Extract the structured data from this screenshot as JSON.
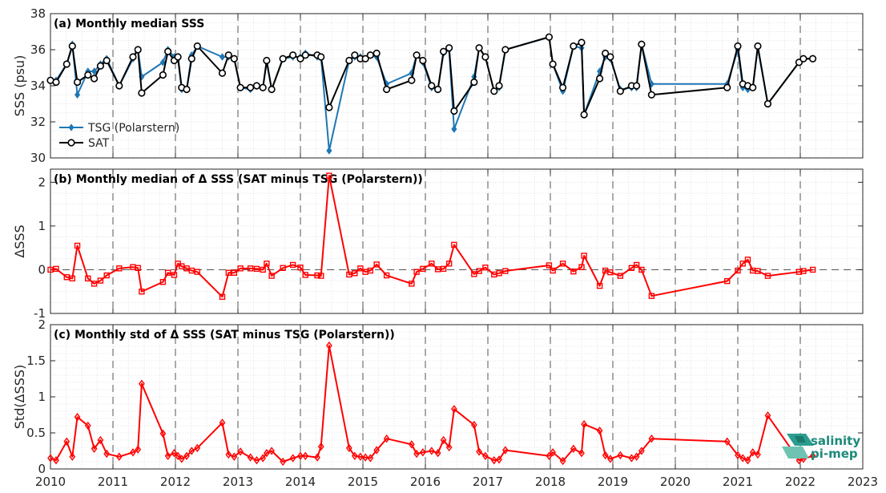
{
  "chart_data": [
    {
      "type": "line",
      "title": "(a) Monthly median SSS",
      "ylabel": "SSS (psu)",
      "xlim": [
        2010,
        2023
      ],
      "ylim": [
        30,
        38
      ],
      "yticks": [
        30,
        32,
        34,
        36,
        38
      ],
      "grid": "minor dotted, dashed vertical at years",
      "legend_placement": "lower-left",
      "series": [
        {
          "name": "TSG (Polarstern)",
          "color": "#1f77b4",
          "marker": "diamond",
          "x": [
            2010.0,
            2010.09,
            2010.26,
            2010.35,
            2010.43,
            2010.6,
            2010.7,
            2010.8,
            2010.9,
            2011.1,
            2011.32,
            2011.4,
            2011.46,
            2011.8,
            2011.88,
            2011.98,
            2012.04,
            2012.1,
            2012.18,
            2012.26,
            2012.35,
            2012.75,
            2012.85,
            2012.94,
            2013.04,
            2013.2,
            2013.3,
            2013.4,
            2013.46,
            2013.54,
            2013.72,
            2013.88,
            2014.0,
            2014.08,
            2014.27,
            2014.33,
            2014.46,
            2014.78,
            2014.87,
            2014.96,
            2015.04,
            2015.12,
            2015.22,
            2015.38,
            2015.78,
            2015.86,
            2015.96,
            2016.1,
            2016.2,
            2016.29,
            2016.38,
            2016.46,
            2016.78,
            2016.86,
            2016.96,
            2017.1,
            2017.18,
            2017.28,
            2017.98,
            2018.04,
            2018.2,
            2018.37,
            2018.5,
            2018.54,
            2018.79,
            2018.88,
            2018.96,
            2019.12,
            2019.3,
            2019.38,
            2019.46,
            2019.62,
            2020.83,
            2021.0,
            2021.08,
            2021.16,
            2021.24,
            2021.32,
            2021.48,
            2021.98,
            2022.05,
            2022.2
          ],
          "y": [
            34.3,
            34.3,
            35.2,
            36.3,
            33.5,
            34.8,
            34.8,
            35.2,
            35.5,
            34.0,
            35.5,
            36.0,
            34.5,
            35.3,
            36.0,
            35.6,
            35.5,
            33.8,
            33.8,
            35.7,
            36.2,
            35.6,
            35.6,
            35.5,
            33.9,
            33.8,
            34.0,
            33.9,
            35.3,
            33.8,
            35.5,
            35.6,
            35.6,
            35.8,
            35.6,
            35.6,
            30.4,
            35.4,
            35.6,
            35.6,
            35.5,
            35.7,
            35.6,
            34.1,
            34.7,
            35.7,
            35.3,
            33.9,
            33.8,
            35.8,
            36.0,
            31.6,
            34.5,
            36.1,
            35.6,
            33.7,
            33.9,
            36.0,
            36.7,
            35.2,
            33.7,
            36.2,
            36.1,
            32.4,
            34.8,
            35.6,
            35.5,
            33.8,
            33.9,
            33.9,
            36.3,
            34.1,
            34.1,
            36.0,
            33.9,
            33.8,
            33.9,
            36.1,
            33.0,
            35.3,
            35.5,
            35.5
          ]
        },
        {
          "name": "SAT",
          "color": "#000000",
          "marker": "circle",
          "x": [
            2010.0,
            2010.09,
            2010.26,
            2010.35,
            2010.43,
            2010.6,
            2010.7,
            2010.8,
            2010.9,
            2011.1,
            2011.32,
            2011.4,
            2011.46,
            2011.8,
            2011.88,
            2011.98,
            2012.04,
            2012.1,
            2012.18,
            2012.26,
            2012.35,
            2012.75,
            2012.85,
            2012.94,
            2013.04,
            2013.2,
            2013.3,
            2013.4,
            2013.46,
            2013.54,
            2013.72,
            2013.88,
            2014.0,
            2014.08,
            2014.27,
            2014.33,
            2014.46,
            2014.78,
            2014.87,
            2014.96,
            2015.04,
            2015.12,
            2015.22,
            2015.38,
            2015.78,
            2015.86,
            2015.96,
            2016.1,
            2016.2,
            2016.29,
            2016.38,
            2016.46,
            2016.78,
            2016.86,
            2016.96,
            2017.1,
            2017.18,
            2017.28,
            2017.98,
            2018.04,
            2018.2,
            2018.37,
            2018.5,
            2018.54,
            2018.79,
            2018.88,
            2018.96,
            2019.12,
            2019.3,
            2019.38,
            2019.46,
            2019.62,
            2020.83,
            2021.0,
            2021.08,
            2021.16,
            2021.24,
            2021.32,
            2021.48,
            2021.98,
            2022.05,
            2022.2
          ],
          "y": [
            34.3,
            34.2,
            35.2,
            36.2,
            34.2,
            34.6,
            34.4,
            35.1,
            35.4,
            34.0,
            35.6,
            36.0,
            33.6,
            34.6,
            35.9,
            35.4,
            35.6,
            33.9,
            33.8,
            35.5,
            36.2,
            34.7,
            35.7,
            35.5,
            33.9,
            33.9,
            34.0,
            33.9,
            35.4,
            33.8,
            35.5,
            35.7,
            35.5,
            35.7,
            35.7,
            35.6,
            32.8,
            35.4,
            35.7,
            35.5,
            35.5,
            35.7,
            35.8,
            33.8,
            34.3,
            35.7,
            35.4,
            34.0,
            33.8,
            35.9,
            36.1,
            32.6,
            34.2,
            36.1,
            35.6,
            33.7,
            34.0,
            36.0,
            36.7,
            35.2,
            33.9,
            36.2,
            36.4,
            32.4,
            34.4,
            35.8,
            35.6,
            33.7,
            34.0,
            34.0,
            36.3,
            33.5,
            33.9,
            36.2,
            34.1,
            34.0,
            33.9,
            36.2,
            33.0,
            35.3,
            35.5,
            35.5
          ]
        }
      ]
    },
    {
      "type": "line",
      "title": "(b) Monthly median of Δ SSS (SAT minus TSG (Polarstern))",
      "ylabel": "ΔSSS",
      "xlim": [
        2010,
        2023
      ],
      "ylim": [
        -1,
        2.3
      ],
      "yticks": [
        -1,
        0,
        1,
        2
      ],
      "reference_line": 0,
      "series": [
        {
          "color": "#ff0000",
          "marker": "square",
          "x": [
            2010.0,
            2010.09,
            2010.26,
            2010.35,
            2010.43,
            2010.6,
            2010.7,
            2010.8,
            2010.9,
            2011.1,
            2011.32,
            2011.4,
            2011.46,
            2011.8,
            2011.88,
            2011.98,
            2012.04,
            2012.1,
            2012.18,
            2012.26,
            2012.35,
            2012.75,
            2012.85,
            2012.94,
            2013.04,
            2013.2,
            2013.3,
            2013.4,
            2013.46,
            2013.54,
            2013.72,
            2013.88,
            2014.0,
            2014.08,
            2014.27,
            2014.33,
            2014.46,
            2014.78,
            2014.87,
            2014.96,
            2015.04,
            2015.12,
            2015.22,
            2015.38,
            2015.78,
            2015.86,
            2015.96,
            2016.1,
            2016.2,
            2016.29,
            2016.38,
            2016.46,
            2016.78,
            2016.86,
            2016.96,
            2017.1,
            2017.18,
            2017.28,
            2017.98,
            2018.04,
            2018.2,
            2018.37,
            2018.5,
            2018.54,
            2018.79,
            2018.88,
            2018.96,
            2019.12,
            2019.3,
            2019.38,
            2019.46,
            2019.62,
            2020.83,
            2021.0,
            2021.08,
            2021.16,
            2021.24,
            2021.32,
            2021.48,
            2021.98,
            2022.05,
            2022.2
          ],
          "y": [
            0.0,
            0.02,
            -0.17,
            -0.2,
            0.55,
            -0.2,
            -0.32,
            -0.25,
            -0.13,
            0.03,
            0.06,
            0.04,
            -0.5,
            -0.28,
            -0.07,
            -0.12,
            0.14,
            0.08,
            0.03,
            -0.02,
            -0.05,
            -0.62,
            -0.07,
            -0.07,
            0.03,
            0.03,
            0.02,
            0.0,
            0.14,
            -0.14,
            0.04,
            0.11,
            0.05,
            -0.12,
            -0.13,
            -0.14,
            2.15,
            -0.11,
            -0.08,
            0.03,
            -0.05,
            -0.02,
            0.12,
            -0.13,
            -0.32,
            -0.05,
            0.02,
            0.14,
            0.01,
            0.02,
            0.14,
            0.57,
            -0.1,
            -0.03,
            0.05,
            -0.11,
            -0.08,
            -0.03,
            0.1,
            -0.02,
            0.14,
            -0.04,
            0.06,
            0.32,
            -0.37,
            -0.02,
            -0.06,
            -0.14,
            0.04,
            0.11,
            0.0,
            -0.6,
            -0.26,
            -0.02,
            0.14,
            0.23,
            -0.02,
            -0.03,
            -0.14,
            -0.05,
            -0.03,
            0.0
          ]
        }
      ]
    },
    {
      "type": "line",
      "title": "(c) Monthly std of Δ SSS (SAT minus TSG (Polarstern))",
      "ylabel": "Std(ΔSSS)",
      "xlabel": "",
      "xlim": [
        2010,
        2023
      ],
      "xticks": [
        2010,
        2011,
        2012,
        2013,
        2014,
        2015,
        2016,
        2017,
        2018,
        2019,
        2020,
        2021,
        2022,
        2023
      ],
      "ylim": [
        0,
        2
      ],
      "yticks": [
        0,
        0.5,
        1,
        1.5,
        2
      ],
      "series": [
        {
          "color": "#ff0000",
          "marker": "diamond",
          "x": [
            2010.0,
            2010.09,
            2010.26,
            2010.35,
            2010.43,
            2010.6,
            2010.7,
            2010.8,
            2010.9,
            2011.1,
            2011.32,
            2011.4,
            2011.46,
            2011.8,
            2011.88,
            2011.98,
            2012.04,
            2012.1,
            2012.18,
            2012.26,
            2012.35,
            2012.75,
            2012.85,
            2012.94,
            2013.04,
            2013.2,
            2013.3,
            2013.4,
            2013.46,
            2013.54,
            2013.72,
            2013.88,
            2014.0,
            2014.08,
            2014.27,
            2014.33,
            2014.46,
            2014.78,
            2014.87,
            2014.96,
            2015.04,
            2015.12,
            2015.22,
            2015.38,
            2015.78,
            2015.86,
            2015.96,
            2016.1,
            2016.2,
            2016.29,
            2016.38,
            2016.46,
            2016.78,
            2016.86,
            2016.96,
            2017.1,
            2017.18,
            2017.28,
            2017.98,
            2018.04,
            2018.2,
            2018.37,
            2018.5,
            2018.54,
            2018.79,
            2018.88,
            2018.96,
            2019.12,
            2019.3,
            2019.38,
            2019.46,
            2019.62,
            2020.83,
            2021.0,
            2021.08,
            2021.16,
            2021.24,
            2021.32,
            2021.48,
            2021.98,
            2022.05,
            2022.2
          ],
          "y": [
            0.15,
            0.12,
            0.38,
            0.17,
            0.72,
            0.6,
            0.28,
            0.4,
            0.21,
            0.17,
            0.23,
            0.27,
            1.18,
            0.49,
            0.18,
            0.22,
            0.18,
            0.14,
            0.18,
            0.25,
            0.29,
            0.64,
            0.2,
            0.17,
            0.24,
            0.16,
            0.12,
            0.15,
            0.22,
            0.25,
            0.1,
            0.15,
            0.18,
            0.18,
            0.16,
            0.31,
            1.71,
            0.29,
            0.18,
            0.17,
            0.16,
            0.15,
            0.26,
            0.42,
            0.34,
            0.21,
            0.23,
            0.25,
            0.22,
            0.4,
            0.3,
            0.83,
            0.61,
            0.24,
            0.18,
            0.12,
            0.13,
            0.26,
            0.18,
            0.23,
            0.11,
            0.28,
            0.22,
            0.62,
            0.53,
            0.19,
            0.14,
            0.19,
            0.15,
            0.17,
            0.25,
            0.42,
            0.38,
            0.19,
            0.15,
            0.12,
            0.23,
            0.2,
            0.74,
            0.12,
            0.14,
            0.18
          ]
        }
      ]
    }
  ],
  "logo": {
    "line1": "salinity",
    "line2": "pi-mep"
  }
}
